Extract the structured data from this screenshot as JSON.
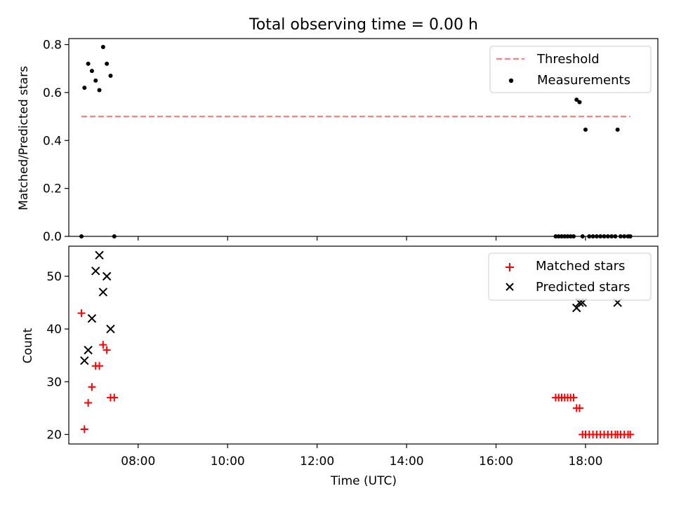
{
  "figure_title": "Total observing time = 0.00 h",
  "chart_data": [
    {
      "type": "scatter",
      "title": "",
      "xlabel": "",
      "ylabel": "Matched/Predicted stars",
      "xlim": [
        "06:27",
        "19:37"
      ],
      "ylim": [
        0,
        0.825
      ],
      "yticks": [
        0.0,
        0.2,
        0.4,
        0.6,
        0.8
      ],
      "ytick_labels": [
        "0.0",
        "0.2",
        "0.4",
        "0.6",
        "0.8"
      ],
      "xticks": [
        "08:00",
        "10:00",
        "12:00",
        "14:00",
        "16:00",
        "18:00"
      ],
      "show_xtick_labels": false,
      "legend_position": "upper right",
      "series": [
        {
          "name": "Threshold",
          "kind": "line",
          "style": "dashed",
          "color": "#ff7f7f",
          "x": [
            "06:44",
            "19:00"
          ],
          "y": [
            0.5,
            0.5
          ]
        },
        {
          "name": "Measurements",
          "kind": "points",
          "marker": "dot",
          "color": "#000000",
          "x": [
            "06:44",
            "06:48",
            "06:53",
            "06:58",
            "07:03",
            "07:08",
            "07:13",
            "07:18",
            "07:23",
            "07:28",
            "17:20",
            "17:24",
            "17:28",
            "17:32",
            "17:36",
            "17:40",
            "17:44",
            "17:48",
            "17:52",
            "17:56",
            "18:00",
            "18:05",
            "18:10",
            "18:15",
            "18:20",
            "18:25",
            "18:30",
            "18:35",
            "18:40",
            "18:43",
            "18:47",
            "18:52",
            "18:57",
            "19:00"
          ],
          "y": [
            0.0,
            0.62,
            0.72,
            0.69,
            0.65,
            0.61,
            0.79,
            0.72,
            0.67,
            0.0,
            0.0,
            0.0,
            0.0,
            0.0,
            0.0,
            0.0,
            0.0,
            0.57,
            0.56,
            0.0,
            0.445,
            0.0,
            0.0,
            0.0,
            0.0,
            0.0,
            0.0,
            0.0,
            0.0,
            0.445,
            0.0,
            0.0,
            0.0,
            0.0
          ]
        }
      ]
    },
    {
      "type": "scatter",
      "title": "",
      "xlabel": "Time (UTC)",
      "ylabel": "Count",
      "xlim": [
        "06:27",
        "19:37"
      ],
      "ylim": [
        18.2,
        55.7
      ],
      "yticks": [
        20,
        30,
        40,
        50
      ],
      "ytick_labels": [
        "20",
        "30",
        "40",
        "50"
      ],
      "xticks": [
        "08:00",
        "10:00",
        "12:00",
        "14:00",
        "16:00",
        "18:00"
      ],
      "xtick_labels": [
        "08:00",
        "10:00",
        "12:00",
        "14:00",
        "16:00",
        "18:00"
      ],
      "legend_position": "upper right",
      "series": [
        {
          "name": "Matched stars",
          "kind": "points",
          "marker": "plus",
          "color": "#ff0000",
          "x": [
            "06:44",
            "06:48",
            "06:53",
            "06:58",
            "07:03",
            "07:08",
            "07:13",
            "07:18",
            "07:23",
            "07:28",
            "17:20",
            "17:24",
            "17:28",
            "17:32",
            "17:36",
            "17:40",
            "17:44",
            "17:48",
            "17:52",
            "17:56",
            "18:00",
            "18:05",
            "18:10",
            "18:15",
            "18:20",
            "18:25",
            "18:30",
            "18:35",
            "18:40",
            "18:43",
            "18:47",
            "18:52",
            "18:57",
            "19:00"
          ],
          "y": [
            43,
            21,
            26,
            29,
            33,
            33,
            37,
            36,
            27,
            27,
            27,
            27,
            27,
            27,
            27,
            27,
            27,
            25,
            25,
            20,
            20,
            20,
            20,
            20,
            20,
            20,
            20,
            20,
            20,
            20,
            20,
            20,
            20,
            20
          ]
        },
        {
          "name": "Predicted stars",
          "kind": "points",
          "marker": "x",
          "color": "#000000",
          "x": [
            "06:48",
            "06:53",
            "06:58",
            "07:03",
            "07:08",
            "07:13",
            "07:18",
            "07:23",
            "17:48",
            "17:52",
            "17:56",
            "18:43"
          ],
          "y": [
            34,
            36,
            42,
            51,
            54,
            47,
            50,
            40,
            44,
            45,
            45,
            45
          ]
        }
      ]
    }
  ]
}
